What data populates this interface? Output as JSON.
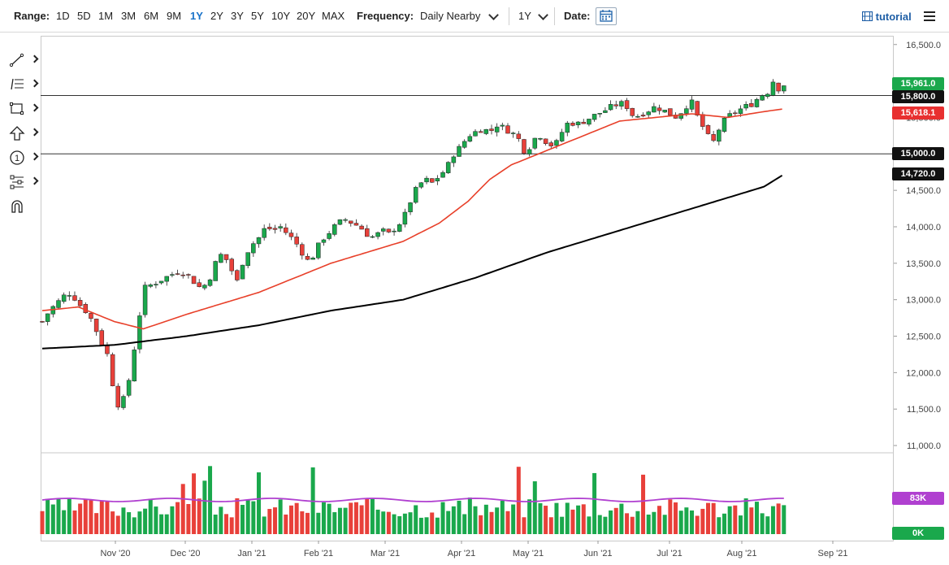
{
  "toolbar": {
    "range_label": "Range:",
    "ranges": [
      "1D",
      "5D",
      "1M",
      "3M",
      "6M",
      "9M",
      "1Y",
      "2Y",
      "3Y",
      "5Y",
      "10Y",
      "20Y",
      "MAX"
    ],
    "active_range": "1Y",
    "frequency_label": "Frequency:",
    "frequency_value": "Daily Nearby",
    "period_value": "1Y",
    "date_label": "Date:",
    "tutorial_label": "tutorial"
  },
  "side_tools": [
    "line-draw-icon",
    "fib-levels-icon",
    "rectangle-icon",
    "arrow-up-icon",
    "number-marker-icon",
    "measure-icon",
    "magnet-icon"
  ],
  "price_labels": {
    "last": "15,961.0",
    "hline_upper": "15,800.0",
    "ma50": "15,618.1",
    "hline_lower": "15,000.0",
    "ma200": "14,720.0",
    "vol_ma": "83K",
    "vol_zero": "0K"
  },
  "colors": {
    "up": "#1aa84c",
    "down": "#e8403a",
    "ma50": "#e8402a",
    "ma200": "#000000",
    "vol_ma": "#b040d0",
    "label_green": "#1aa84c",
    "label_red": "#e83030",
    "label_black": "#111111"
  },
  "chart_data": {
    "type": "candlestick",
    "y_axis_ticks": [
      "16,500.0",
      "16,000.0",
      "15,500.0",
      "15,000.0",
      "14,500.0",
      "14,000.0",
      "13,500.0",
      "13,000.0",
      "12,500.0",
      "12,000.0",
      "11,500.0",
      "11,000.0"
    ],
    "y_range": [
      10900,
      16620
    ],
    "x_axis_labels": [
      "Nov '20",
      "Dec '20",
      "Jan '21",
      "Feb '21",
      "Mar '21",
      "Apr '21",
      "May '21",
      "Jun '21",
      "Jul '21",
      "Aug '21",
      "Sep '21"
    ],
    "horizontal_lines": [
      15800,
      15000
    ],
    "close_path": [
      [
        0,
        12700
      ],
      [
        4,
        12850
      ],
      [
        8,
        12950
      ],
      [
        12,
        13050
      ],
      [
        16,
        13100
      ],
      [
        20,
        12950
      ],
      [
        24,
        12850
      ],
      [
        28,
        12700
      ],
      [
        32,
        12450
      ],
      [
        36,
        12250
      ],
      [
        38,
        12000
      ],
      [
        40,
        11700
      ],
      [
        43,
        11500
      ],
      [
        46,
        11700
      ],
      [
        49,
        12000
      ],
      [
        52,
        12500
      ],
      [
        54,
        12800
      ],
      [
        56,
        13150
      ],
      [
        60,
        13200
      ],
      [
        64,
        13250
      ],
      [
        68,
        13300
      ],
      [
        72,
        13350
      ],
      [
        76,
        13400
      ],
      [
        80,
        13350
      ],
      [
        84,
        13250
      ],
      [
        88,
        13150
      ],
      [
        92,
        13250
      ],
      [
        96,
        13500
      ],
      [
        100,
        13650
      ],
      [
        104,
        13450
      ],
      [
        108,
        13250
      ],
      [
        112,
        13600
      ],
      [
        116,
        13750
      ],
      [
        120,
        13850
      ],
      [
        124,
        14000
      ],
      [
        128,
        13950
      ],
      [
        132,
        14000
      ],
      [
        136,
        13900
      ],
      [
        140,
        13800
      ],
      [
        144,
        13650
      ],
      [
        148,
        13500
      ],
      [
        152,
        13700
      ],
      [
        156,
        13850
      ],
      [
        160,
        13950
      ],
      [
        164,
        14050
      ],
      [
        168,
        14100
      ],
      [
        172,
        14050
      ],
      [
        176,
        14000
      ],
      [
        180,
        13900
      ],
      [
        184,
        13850
      ],
      [
        188,
        13950
      ],
      [
        192,
        13900
      ],
      [
        196,
        14000
      ],
      [
        200,
        14100
      ],
      [
        204,
        14350
      ],
      [
        208,
        14550
      ],
      [
        212,
        14650
      ],
      [
        216,
        14600
      ],
      [
        220,
        14700
      ],
      [
        224,
        14800
      ],
      [
        228,
        15000
      ],
      [
        232,
        15100
      ],
      [
        236,
        15250
      ],
      [
        240,
        15300
      ],
      [
        244,
        15350
      ],
      [
        248,
        15300
      ],
      [
        252,
        15400
      ],
      [
        256,
        15350
      ],
      [
        260,
        15300
      ],
      [
        264,
        15200
      ],
      [
        268,
        15000
      ],
      [
        272,
        15200
      ],
      [
        276,
        15250
      ],
      [
        280,
        15150
      ],
      [
        284,
        15100
      ],
      [
        288,
        15300
      ],
      [
        292,
        15450
      ],
      [
        296,
        15400
      ],
      [
        300,
        15450
      ],
      [
        304,
        15500
      ],
      [
        308,
        15550
      ],
      [
        312,
        15600
      ],
      [
        316,
        15650
      ],
      [
        320,
        15700
      ],
      [
        324,
        15650
      ],
      [
        328,
        15500
      ],
      [
        332,
        15550
      ],
      [
        336,
        15600
      ],
      [
        340,
        15650
      ],
      [
        344,
        15600
      ],
      [
        348,
        15550
      ],
      [
        352,
        15500
      ],
      [
        356,
        15650
      ],
      [
        360,
        15700
      ],
      [
        364,
        15450
      ],
      [
        368,
        15300
      ],
      [
        371,
        15100
      ],
      [
        374,
        15300
      ],
      [
        378,
        15450
      ],
      [
        382,
        15550
      ],
      [
        386,
        15600
      ],
      [
        390,
        15650
      ],
      [
        394,
        15700
      ],
      [
        398,
        15800
      ],
      [
        402,
        15850
      ],
      [
        405,
        16000
      ],
      [
        408,
        15900
      ],
      [
        411,
        15950
      ]
    ],
    "ma50_path": [
      [
        0,
        12850
      ],
      [
        20,
        12900
      ],
      [
        40,
        12700
      ],
      [
        56,
        12600
      ],
      [
        80,
        12800
      ],
      [
        100,
        12950
      ],
      [
        120,
        13100
      ],
      [
        140,
        13300
      ],
      [
        160,
        13500
      ],
      [
        180,
        13650
      ],
      [
        200,
        13800
      ],
      [
        220,
        14050
      ],
      [
        236,
        14350
      ],
      [
        248,
        14650
      ],
      [
        260,
        14850
      ],
      [
        280,
        15050
      ],
      [
        300,
        15250
      ],
      [
        320,
        15450
      ],
      [
        340,
        15500
      ],
      [
        360,
        15550
      ],
      [
        380,
        15500
      ],
      [
        400,
        15580
      ],
      [
        411,
        15618
      ]
    ],
    "ma200_path": [
      [
        0,
        12330
      ],
      [
        40,
        12380
      ],
      [
        80,
        12500
      ],
      [
        120,
        12650
      ],
      [
        160,
        12850
      ],
      [
        200,
        13000
      ],
      [
        240,
        13300
      ],
      [
        280,
        13650
      ],
      [
        320,
        13950
      ],
      [
        360,
        14250
      ],
      [
        400,
        14550
      ],
      [
        411,
        14720
      ]
    ],
    "volume_note": "daily volume bars with moving average; axis labels 83K and 0K"
  }
}
